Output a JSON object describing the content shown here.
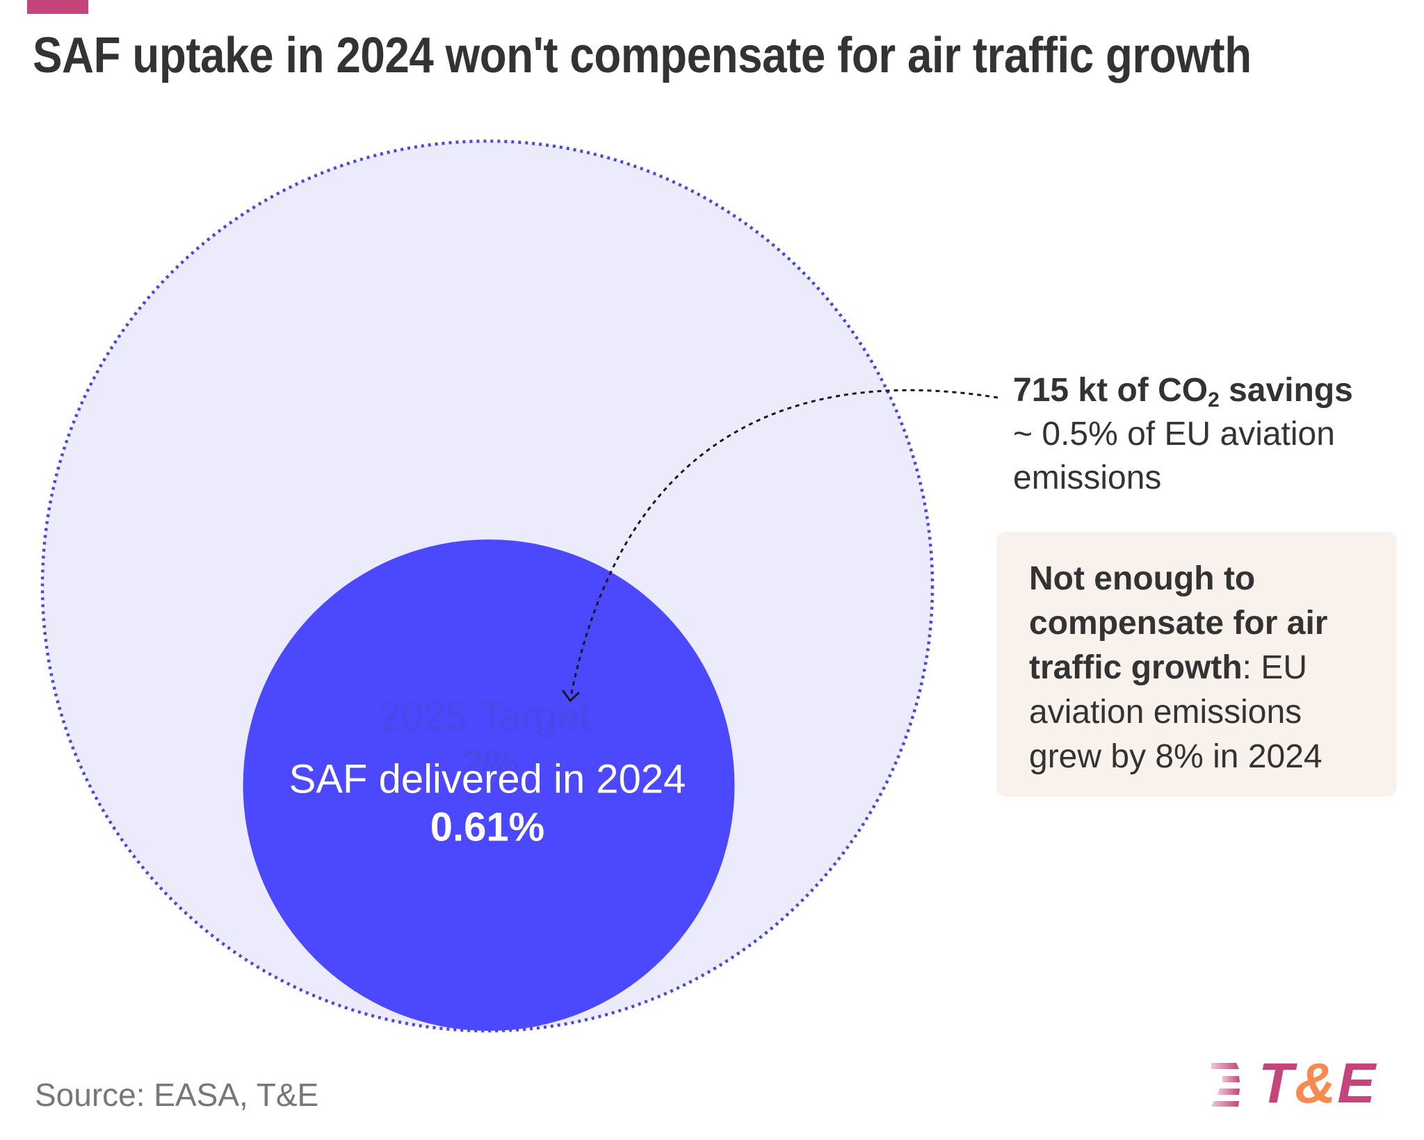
{
  "header": {
    "accent_color": "#c3457b",
    "title": "SAF uptake in 2024 won't compensate for air traffic growth"
  },
  "chart_data": {
    "type": "area",
    "subtype": "nested-proportional-circles",
    "title": "SAF uptake in 2024 won't compensate for air traffic growth",
    "unit": "% share of aviation fuel",
    "series": [
      {
        "name": "2025 Target",
        "value": 2,
        "value_label": "2%",
        "color": "#ebebfc",
        "stroke": "#4b49d9",
        "style": "dotted-outline"
      },
      {
        "name": "SAF delivered in 2024",
        "value": 0.61,
        "value_label": "0.61%",
        "color": "#4b48fd",
        "style": "filled"
      }
    ],
    "annotations": [
      {
        "target": "SAF delivered in 2024",
        "headline_parts": [
          "715 kt of CO",
          "2",
          " savings"
        ],
        "text_lines": [
          "~ 0.5% of EU aviation",
          "emissions"
        ]
      }
    ],
    "legend": "none",
    "grid": false
  },
  "labels": {
    "target_name": "2025 Target",
    "target_value": "2%",
    "delivered_name": "SAF delivered in 2024",
    "delivered_value": "0.61%",
    "target_label_color": "#4b48e8",
    "delivered_label_color": "#ffffff"
  },
  "annotation": {
    "headline_pre": "715 kt of CO",
    "headline_sub": "2",
    "headline_post": " savings",
    "line2": "~ 0.5% of EU aviation",
    "line3": "emissions"
  },
  "note_box": {
    "bold_line1": "Not enough to",
    "bold_line2": "compensate for air",
    "bold_line3": "traffic growth",
    "line3_rest": ": EU",
    "line4": "aviation emissions",
    "line5": "grew by 8% in 2024",
    "background": "#f9f1ec"
  },
  "footer": {
    "source": "Source: EASA, T&E",
    "logo": {
      "t": "T",
      "amp": "&",
      "e": "E",
      "primary_color": "#c3457b",
      "secondary_color": "#f98a4f"
    }
  }
}
